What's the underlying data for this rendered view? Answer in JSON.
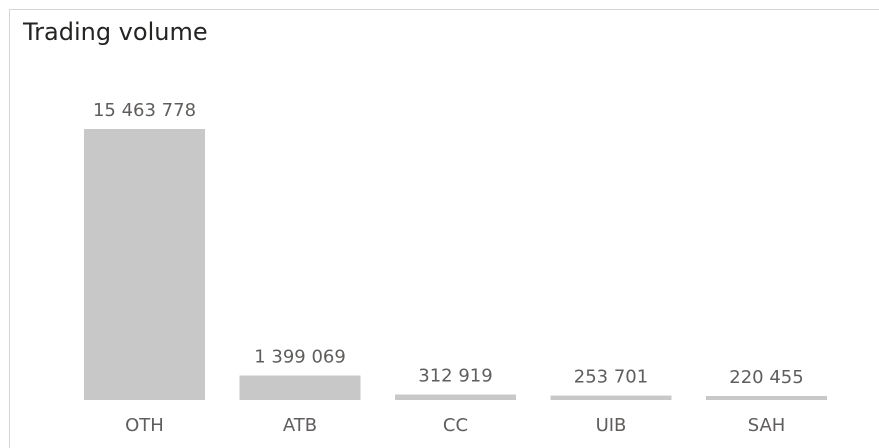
{
  "chart_data": {
    "type": "bar",
    "title": "Trading volume",
    "categories": [
      "OTH",
      "ATB",
      "CC",
      "UIB",
      "SAH"
    ],
    "values": [
      15463778,
      1399069,
      312919,
      253701,
      220455
    ],
    "value_labels": [
      "15 463 778",
      "1 399 069",
      "312 919",
      "253 701",
      "220 455"
    ],
    "xlabel": "",
    "ylabel": "",
    "ylim": [
      0,
      15463778
    ],
    "grid": false,
    "legend": "none",
    "bar_color": "#c8c8c8"
  }
}
